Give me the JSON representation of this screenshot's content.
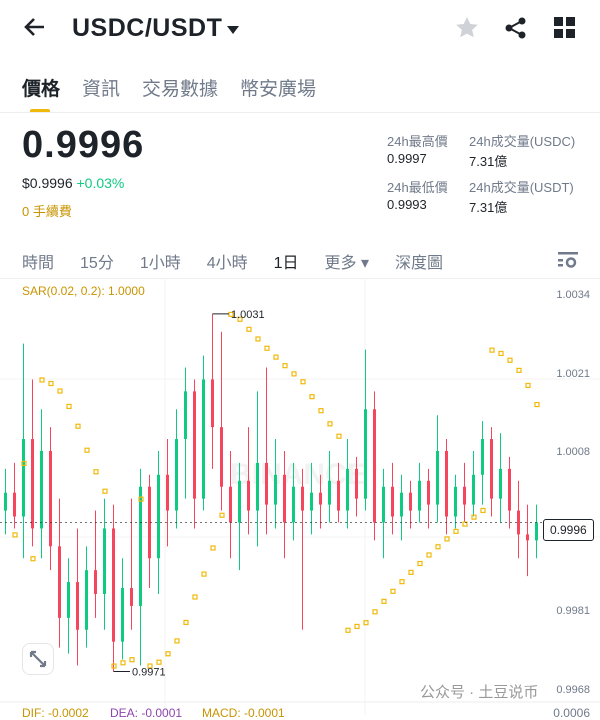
{
  "header": {
    "title": "USDC/USDT",
    "back_icon": "arrow-left",
    "star_icon": "star",
    "share_icon": "share",
    "grid_icon": "grid"
  },
  "tabs": [
    {
      "label": "價格",
      "active": true
    },
    {
      "label": "資訊"
    },
    {
      "label": "交易數據"
    },
    {
      "label": "幣安廣場"
    }
  ],
  "ticker": {
    "last": "0.9996",
    "usd": "$0.9996",
    "change": "+0.03%",
    "fee": "0 手續費",
    "high_label": "24h最高價",
    "high": "0.9997",
    "low_label": "24h最低價",
    "low": "0.9993",
    "vol_usdc_label": "24h成交量(USDC)",
    "vol_usdc": "7.31億",
    "vol_usdt_label": "24h成交量(USDT)",
    "vol_usdt": "7.31億"
  },
  "intervals": [
    {
      "label": "時間"
    },
    {
      "label": "15分"
    },
    {
      "label": "1小時"
    },
    {
      "label": "4小時"
    },
    {
      "label": "1日",
      "active": true
    },
    {
      "label": "更多 ▾"
    },
    {
      "label": "深度圖"
    }
  ],
  "indicator": {
    "sar": "SAR(0.02, 0.2): 1.0000",
    "dif": "DIF: -0.0002",
    "dea": "DEA: -0.0001",
    "macd": "MACD: -0.0001"
  },
  "watermark": "公众号 · 土豆说币",
  "colors": {
    "up": "#0ecb81",
    "down": "#f6465d",
    "sar": "#f0b90b",
    "accent": "#f0b90b"
  },
  "chart_data": {
    "type": "candlestick",
    "ylim": [
      0.9966,
      1.0036
    ],
    "y_ticks": [
      "1.0034",
      "1.0021",
      "1.0008",
      "0.9981",
      "0.9968"
    ],
    "macd_tick": "0.0006",
    "last_price": "0.9996",
    "max_label": "1.0031",
    "min_label": "0.9971",
    "candles": [
      [
        0.9998,
        1.0005,
        0.9994,
        1.0001
      ],
      [
        1.0001,
        1.0006,
        0.9995,
        0.9997
      ],
      [
        0.9997,
        1.0026,
        0.999,
        1.001
      ],
      [
        1.001,
        1.002,
        0.9992,
        0.9995
      ],
      [
        0.9995,
        1.0015,
        0.999,
        1.0008
      ],
      [
        1.0008,
        1.0012,
        0.9988,
        0.9992
      ],
      [
        0.9992,
        1.0,
        0.9975,
        0.998
      ],
      [
        0.998,
        0.999,
        0.9974,
        0.9986
      ],
      [
        0.9986,
        0.9995,
        0.9972,
        0.9978
      ],
      [
        0.9978,
        0.9992,
        0.9975,
        0.9988
      ],
      [
        0.9988,
        0.9998,
        0.998,
        0.9984
      ],
      [
        0.9984,
        1.0,
        0.9978,
        0.9995
      ],
      [
        0.9995,
        0.9999,
        0.9971,
        0.9976
      ],
      [
        0.9976,
        0.999,
        0.9973,
        0.9985
      ],
      [
        0.9985,
        1.0,
        0.9978,
        0.9982
      ],
      [
        0.9982,
        1.0005,
        0.9972,
        1.0002
      ],
      [
        1.0002,
        1.0004,
        0.9985,
        0.999
      ],
      [
        0.999,
        1.0008,
        0.9984,
        1.0004
      ],
      [
        1.0004,
        1.001,
        0.9992,
        0.9998
      ],
      [
        0.9998,
        1.0015,
        0.9995,
        1.001
      ],
      [
        1.001,
        1.0022,
        1.0,
        1.0018
      ],
      [
        1.0018,
        1.002,
        0.9995,
        1.0
      ],
      [
        1.0,
        1.0024,
        0.9998,
        1.002
      ],
      [
        1.002,
        1.0031,
        1.0005,
        1.0012
      ],
      [
        1.0012,
        1.0028,
        0.9998,
        1.0002
      ],
      [
        1.0002,
        1.0008,
        0.999,
        0.9996
      ],
      [
        0.9996,
        1.0006,
        0.9988,
        1.0003
      ],
      [
        1.0003,
        1.0012,
        0.9994,
        0.9998
      ],
      [
        0.9998,
        1.0018,
        0.9992,
        1.0006
      ],
      [
        1.0006,
        1.0022,
        0.9994,
        0.9999
      ],
      [
        0.9999,
        1.001,
        0.9995,
        1.0004
      ],
      [
        1.0004,
        1.0008,
        0.999,
        0.9996
      ],
      [
        0.9996,
        1.0006,
        0.9993,
        1.0002
      ],
      [
        1.0002,
        1.0005,
        0.9978,
        0.9998
      ],
      [
        0.9998,
        1.0006,
        0.9994,
        1.0001
      ],
      [
        1.0001,
        1.0004,
        0.9995,
        0.9999
      ],
      [
        0.9999,
        1.0008,
        0.9996,
        1.0003
      ],
      [
        1.0003,
        1.0006,
        0.9996,
        0.9998
      ],
      [
        0.9998,
        1.001,
        0.9995,
        1.0005
      ],
      [
        1.0005,
        1.0007,
        0.9997,
        1.0
      ],
      [
        1.0,
        1.0025,
        0.9998,
        1.0015
      ],
      [
        1.0015,
        1.0018,
        0.9993,
        0.9996
      ],
      [
        0.9996,
        1.0005,
        0.999,
        1.0002
      ],
      [
        1.0002,
        1.0006,
        0.9994,
        0.9997
      ],
      [
        0.9997,
        1.0004,
        0.9993,
        1.0001
      ],
      [
        1.0001,
        1.0003,
        0.9995,
        0.9998
      ],
      [
        0.9998,
        1.0006,
        0.9996,
        1.0003
      ],
      [
        1.0003,
        1.0005,
        0.9995,
        0.9999
      ],
      [
        0.9999,
        1.0014,
        0.9996,
        1.0008
      ],
      [
        1.0008,
        1.001,
        0.9994,
        0.9997
      ],
      [
        0.9997,
        1.0004,
        0.9995,
        1.0002
      ],
      [
        1.0002,
        1.0006,
        0.9996,
        0.9999
      ],
      [
        0.9999,
        1.0008,
        0.9997,
        1.0004
      ],
      [
        1.0004,
        1.0013,
        0.9999,
        1.001
      ],
      [
        1.001,
        1.0012,
        0.9997,
        1.0
      ],
      [
        1.0,
        1.0011,
        0.9996,
        1.0005
      ],
      [
        1.0005,
        1.0007,
        0.9995,
        0.9998
      ],
      [
        0.9998,
        1.0003,
        0.999,
        0.9994
      ],
      [
        0.9994,
        0.9999,
        0.9987,
        0.9993
      ],
      [
        0.9993,
        0.9999,
        0.999,
        0.9996
      ]
    ]
  }
}
